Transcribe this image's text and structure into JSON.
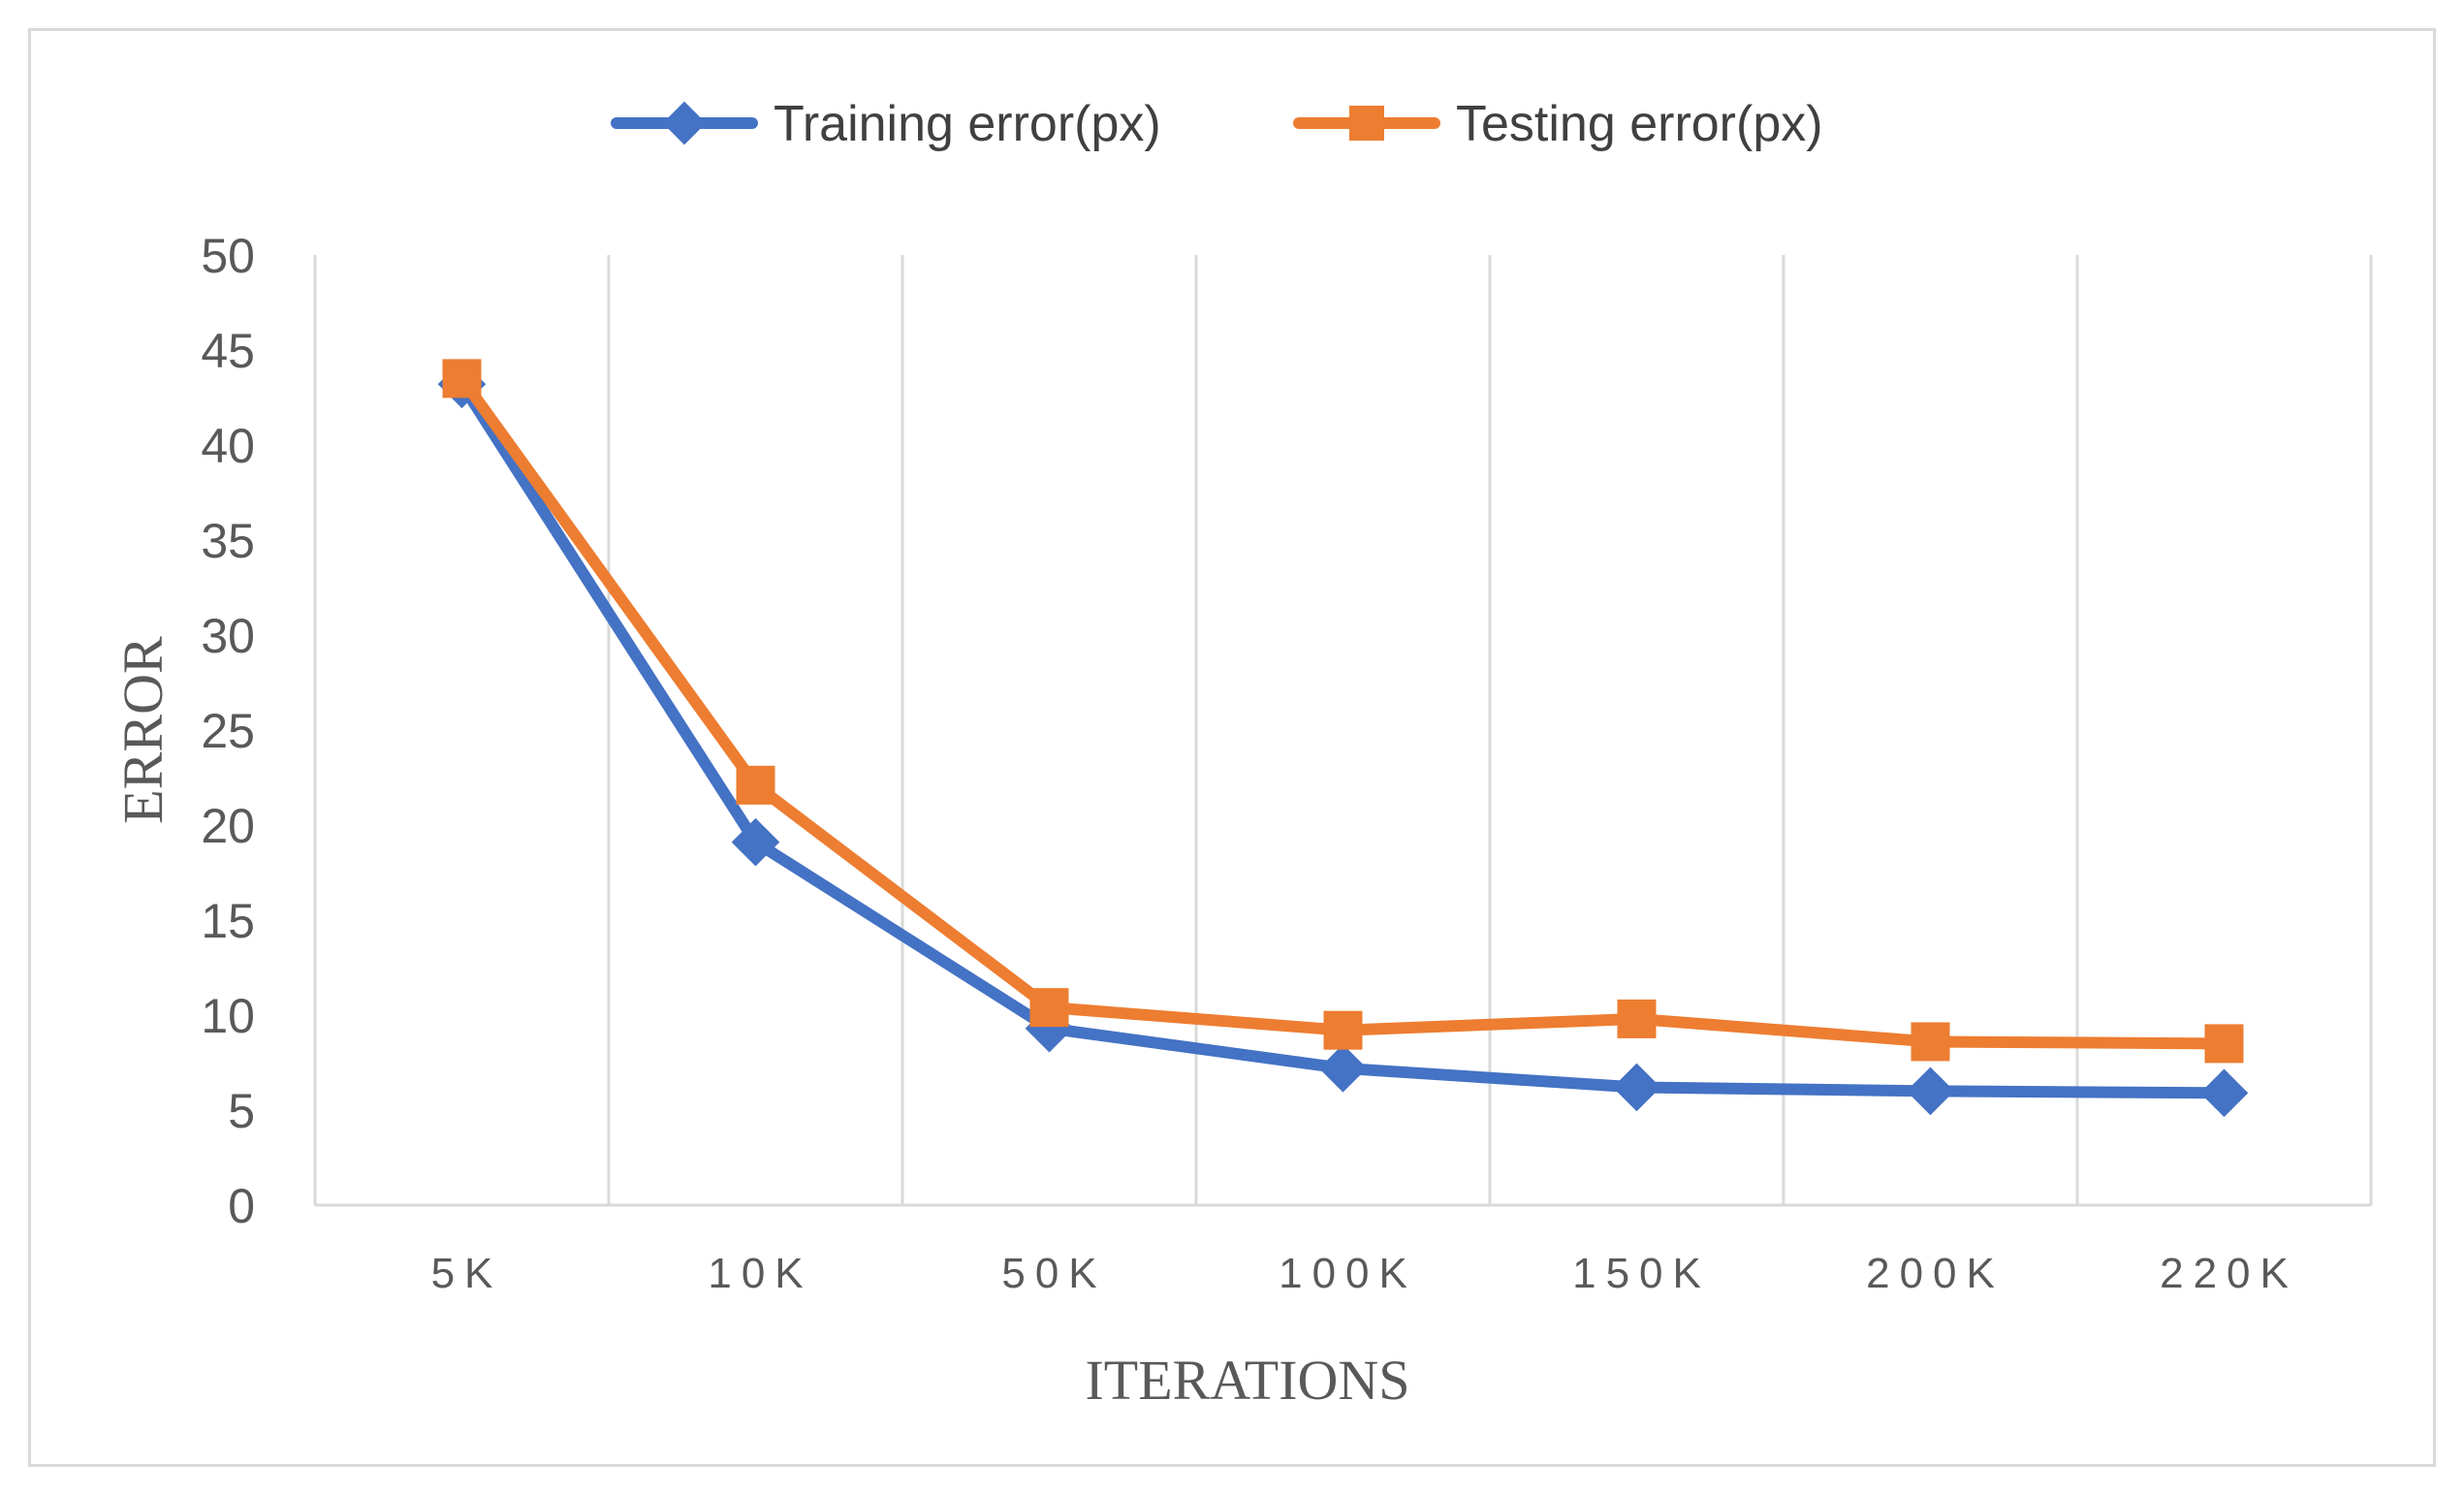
{
  "chart_data": {
    "type": "line",
    "categories": [
      "5K",
      "10K",
      "50K",
      "100K",
      "150K",
      "200K",
      "220K"
    ],
    "series": [
      {
        "name": "Training error(px)",
        "values": [
          43.2,
          19.1,
          9.3,
          7.2,
          6.2,
          6.0,
          5.9
        ],
        "color": "#4472C4",
        "marker": "diamond"
      },
      {
        "name": "Testing error(px)",
        "values": [
          43.5,
          22.1,
          10.4,
          9.2,
          9.8,
          8.6,
          8.5
        ],
        "color": "#ED7D31",
        "marker": "square"
      }
    ],
    "xlabel": "ITERATIONS",
    "ylabel": "ERROR",
    "ylim": [
      0,
      50
    ],
    "yticks": [
      "0",
      "5",
      "10",
      "15",
      "20",
      "25",
      "30",
      "35",
      "40",
      "45",
      "50"
    ],
    "grid": "vertical",
    "legend_position": "top"
  }
}
